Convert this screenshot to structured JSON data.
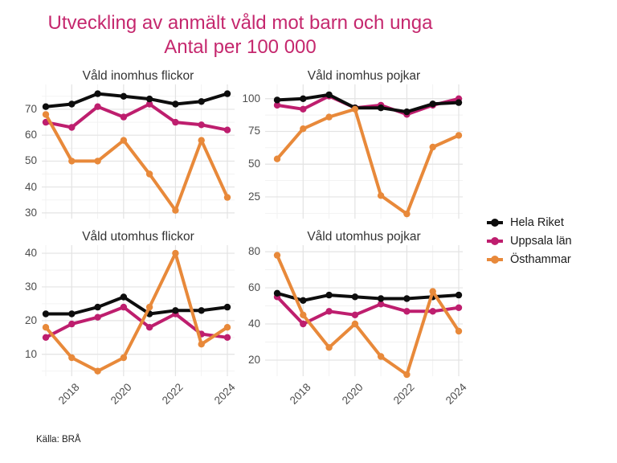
{
  "title": {
    "line1": "Utveckling av anmält våld mot barn och unga",
    "line2": "Antal per 100 000"
  },
  "source": "Källa: BRÅ",
  "colors": {
    "title": "#C5286E",
    "hela_riket": "#0D0D0D",
    "uppsala_lan": "#BE1E6E",
    "osthammar": "#E8893A",
    "axis_text": "#4D4D4D",
    "grid_major": "#E3E3E3",
    "grid_minor": "#F1F1F1"
  },
  "legend": {
    "items": [
      {
        "label": "Hela Riket",
        "color": "hela_riket"
      },
      {
        "label": "Uppsala län",
        "color": "uppsala_lan"
      },
      {
        "label": "Östhammar",
        "color": "osthammar"
      }
    ]
  },
  "chart_data": [
    {
      "type": "line",
      "title": "Våld inomhus flickor",
      "x": [
        2017,
        2018,
        2019,
        2020,
        2021,
        2022,
        2023,
        2024
      ],
      "x_tick_labels": [
        "2018",
        "2020",
        "2022",
        "2024"
      ],
      "y_ticks": [
        30,
        40,
        50,
        60,
        70
      ],
      "ylim": [
        27.8,
        79.6
      ],
      "series": [
        {
          "name": "Hela Riket",
          "color": "hela_riket",
          "values": [
            71,
            72,
            76,
            75,
            74,
            72,
            73,
            76
          ]
        },
        {
          "name": "Uppsala län",
          "color": "uppsala_lan",
          "values": [
            65,
            63,
            71,
            67,
            72,
            65,
            64,
            62
          ]
        },
        {
          "name": "Östhammar",
          "color": "osthammar",
          "values": [
            68,
            50,
            50,
            58,
            45,
            31,
            58,
            36
          ]
        }
      ]
    },
    {
      "type": "line",
      "title": "Våld inomhus pojkar",
      "x": [
        2017,
        2018,
        2019,
        2020,
        2021,
        2022,
        2023,
        2024
      ],
      "x_tick_labels": [
        "2018",
        "2020",
        "2022",
        "2024"
      ],
      "y_ticks": [
        25,
        50,
        75,
        100
      ],
      "ylim": [
        8.4,
        110.9
      ],
      "series": [
        {
          "name": "Hela Riket",
          "color": "hela_riket",
          "values": [
            99,
            100,
            103,
            93,
            93,
            90,
            96,
            97
          ]
        },
        {
          "name": "Uppsala län",
          "color": "uppsala_lan",
          "values": [
            95,
            92,
            102,
            93,
            95,
            88,
            95,
            100
          ]
        },
        {
          "name": "Östhammar",
          "color": "osthammar",
          "values": [
            54,
            77,
            86,
            92,
            26,
            12,
            63,
            72
          ]
        }
      ]
    },
    {
      "type": "line",
      "title": "Våld utomhus flickor",
      "x": [
        2017,
        2018,
        2019,
        2020,
        2021,
        2022,
        2023,
        2024
      ],
      "x_tick_labels": [
        "2018",
        "2020",
        "2022",
        "2024"
      ],
      "y_ticks": [
        10,
        20,
        30,
        40
      ],
      "ylim": [
        3.5,
        42.4
      ],
      "series": [
        {
          "name": "Hela Riket",
          "color": "hela_riket",
          "values": [
            22,
            22,
            24,
            27,
            22,
            23,
            23,
            24
          ]
        },
        {
          "name": "Uppsala län",
          "color": "uppsala_lan",
          "values": [
            15,
            19,
            21,
            24,
            18,
            22,
            16,
            15
          ]
        },
        {
          "name": "Östhammar",
          "color": "osthammar",
          "values": [
            18,
            9,
            5,
            9,
            24,
            40,
            13,
            18
          ]
        }
      ]
    },
    {
      "type": "line",
      "title": "Våld utomhus pojkar",
      "x": [
        2017,
        2018,
        2019,
        2020,
        2021,
        2022,
        2023,
        2024
      ],
      "x_tick_labels": [
        "2018",
        "2020",
        "2022",
        "2024"
      ],
      "y_ticks": [
        20,
        40,
        60,
        80
      ],
      "ylim": [
        11.1,
        83.6
      ],
      "series": [
        {
          "name": "Hela Riket",
          "color": "hela_riket",
          "values": [
            57,
            53,
            56,
            55,
            54,
            54,
            55,
            56
          ]
        },
        {
          "name": "Uppsala län",
          "color": "uppsala_lan",
          "values": [
            55,
            40,
            47,
            45,
            51,
            47,
            47,
            49
          ]
        },
        {
          "name": "Östhammar",
          "color": "osthammar",
          "values": [
            78,
            45,
            27,
            40,
            22,
            12,
            58,
            36
          ]
        }
      ]
    }
  ]
}
